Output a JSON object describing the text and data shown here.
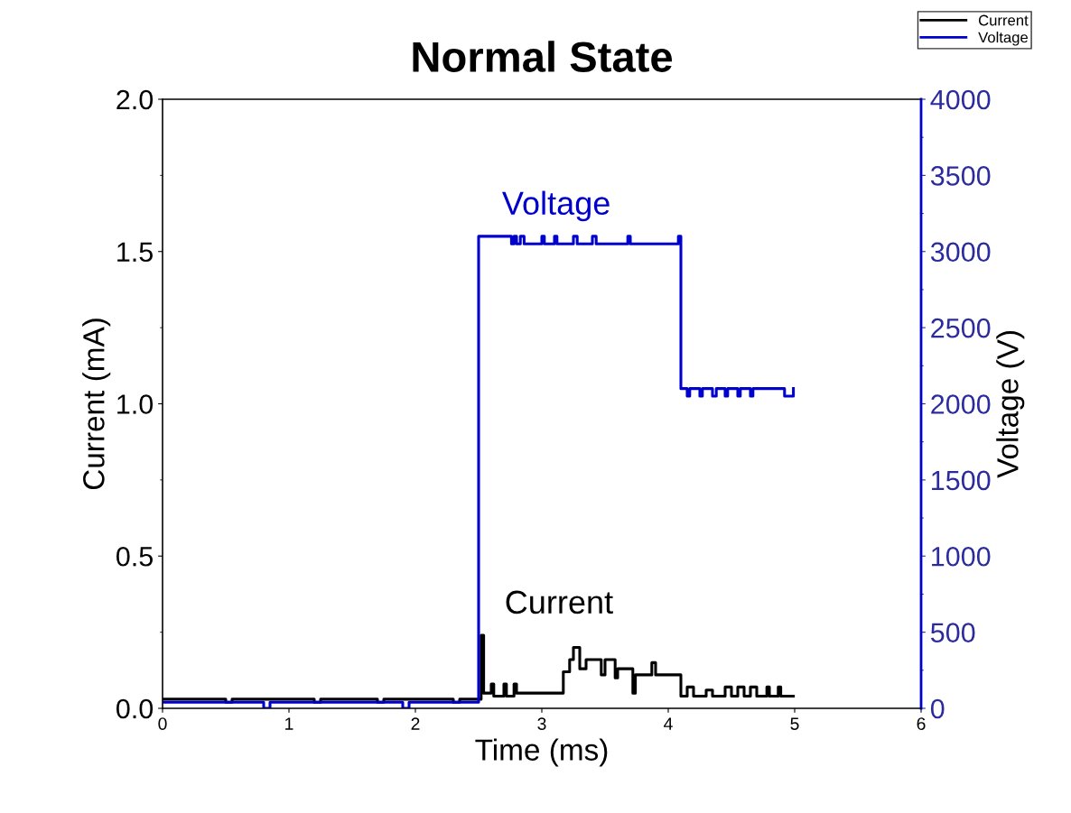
{
  "chart_data": {
    "type": "step",
    "title": "Normal State",
    "xlabel": "Time (ms)",
    "ylabel": "Current (mA)",
    "y2label": "Voltage (V)",
    "xlim": [
      0,
      6
    ],
    "xticks": [
      0,
      1,
      2,
      3,
      4,
      5,
      6
    ],
    "ylim": [
      0,
      2
    ],
    "yticks": [
      {
        "value": 0,
        "label": "0.0"
      },
      {
        "value": 0.5,
        "label": "0.5"
      },
      {
        "value": 1,
        "label": "1.0"
      },
      {
        "value": 1.5,
        "label": "1.5"
      },
      {
        "value": 2,
        "label": "2.0"
      }
    ],
    "y2lim": [
      0,
      4000
    ],
    "y2ticks": [
      0,
      500,
      1000,
      1500,
      2000,
      2500,
      3000,
      3500,
      4000
    ],
    "legend": "top right",
    "grid": false,
    "marker": "none",
    "line_style": "solid",
    "series": [
      {
        "name": "Current",
        "color": "#000000",
        "x": [
          0,
          0.5,
          0.5,
          0.55,
          0.55,
          1.2,
          1.2,
          1.25,
          1.25,
          1.7,
          1.7,
          1.75,
          1.75,
          2.3,
          2.3,
          2.35,
          2.35,
          2.5,
          2.52,
          2.54,
          2.6,
          2.6,
          2.62,
          2.62,
          2.7,
          2.7,
          2.72,
          2.72,
          2.78,
          2.78,
          2.8,
          2.8,
          3.15,
          3.17,
          3.22,
          3.25,
          3.3,
          3.35,
          3.45,
          3.47,
          3.5,
          3.56,
          3.58,
          3.6,
          3.7,
          3.72,
          3.74,
          3.85,
          3.87,
          3.9,
          4.1,
          4.1,
          4.15,
          4.2,
          4.3,
          4.35,
          4.45,
          4.5,
          4.55,
          4.6,
          4.65,
          4.7,
          4.78,
          4.8,
          4.87,
          4.89,
          4.99
        ],
        "values": [
          0.03,
          0.03,
          0.02,
          0.02,
          0.03,
          0.03,
          0.02,
          0.02,
          0.03,
          0.03,
          0.02,
          0.02,
          0.03,
          0.03,
          0.02,
          0.02,
          0.03,
          0.03,
          0.24,
          0.05,
          0.05,
          0.08,
          0.08,
          0.04,
          0.04,
          0.08,
          0.08,
          0.04,
          0.04,
          0.08,
          0.08,
          0.05,
          0.05,
          0.12,
          0.16,
          0.2,
          0.13,
          0.16,
          0.16,
          0.11,
          0.16,
          0.16,
          0.1,
          0.13,
          0.13,
          0.05,
          0.11,
          0.11,
          0.15,
          0.11,
          0.11,
          0.04,
          0.07,
          0.04,
          0.06,
          0.04,
          0.07,
          0.04,
          0.07,
          0.04,
          0.07,
          0.04,
          0.07,
          0.04,
          0.07,
          0.04,
          0.04
        ]
      },
      {
        "name": "Voltage",
        "color": "#0000cc",
        "axis": "y2",
        "x": [
          0,
          0.8,
          0.8,
          0.85,
          0.85,
          1.9,
          1.9,
          1.95,
          1.95,
          2.5,
          2.5,
          2.75,
          2.76,
          2.78,
          2.8,
          2.83,
          2.86,
          3.0,
          3.02,
          3.1,
          3.12,
          3.25,
          3.28,
          3.4,
          3.43,
          3.68,
          3.7,
          4.08,
          4.1,
          4.15,
          4.17,
          4.25,
          4.27,
          4.35,
          4.38,
          4.45,
          4.47,
          4.55,
          4.57,
          4.65,
          4.67,
          4.9,
          4.92,
          4.99
        ],
        "values": [
          40,
          40,
          0,
          0,
          40,
          40,
          0,
          0,
          40,
          40,
          3100,
          3100,
          3050,
          3100,
          3050,
          3100,
          3050,
          3100,
          3050,
          3100,
          3050,
          3100,
          3050,
          3100,
          3050,
          3100,
          3050,
          3100,
          2100,
          2050,
          2100,
          2050,
          2100,
          2050,
          2100,
          2050,
          2100,
          2050,
          2100,
          2050,
          2100,
          2100,
          2050,
          2100
        ]
      }
    ],
    "annotations": [
      "Voltage",
      "Current"
    ]
  }
}
